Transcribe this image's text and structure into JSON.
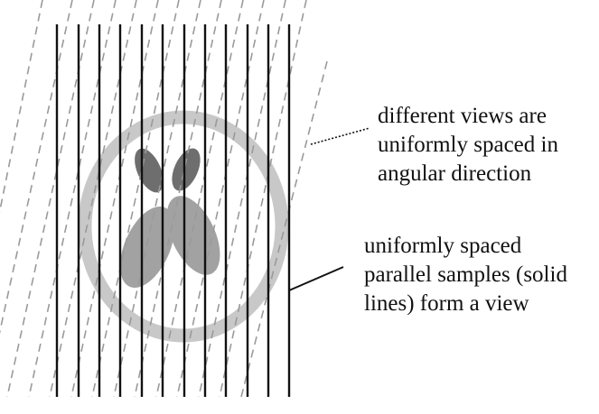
{
  "annotations": {
    "views": {
      "lines": [
        "different views are",
        "uniformly spaced in",
        "angular direction"
      ]
    },
    "samples": {
      "lines": [
        "uniformly spaced",
        "parallel samples (solid",
        "lines) form a view"
      ]
    }
  },
  "colors": {
    "solid_line": "#111111",
    "dashed_line": "#9a9a9a",
    "phantom_ring": "#c8c8c8",
    "dark_lobes": "#6e6e6e",
    "light_lobes": "#a2a2a2",
    "text": "#111111"
  }
}
